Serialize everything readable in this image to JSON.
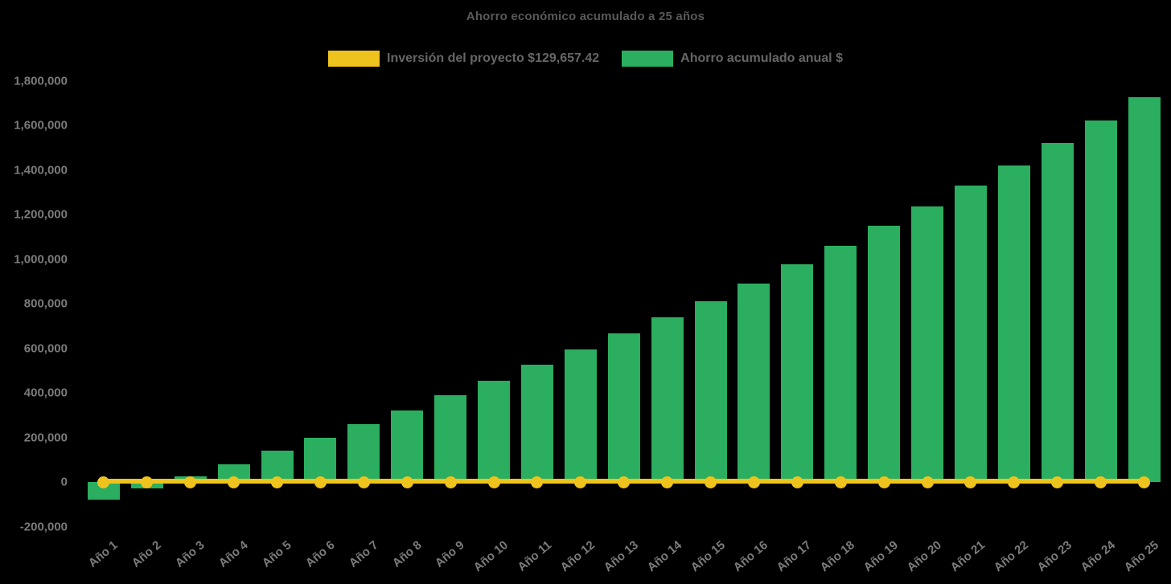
{
  "title": "Ahorro económico acumulado a 25 años",
  "legend": {
    "items": [
      {
        "label": "Inversión del proyecto $129,657.42",
        "color": "#efc31d"
      },
      {
        "label": "Ahorro acumulado anual $",
        "color": "#2bae5f"
      }
    ]
  },
  "colors": {
    "background": "#000000",
    "bars": "#2bae5f",
    "investment_line": "#efc31d",
    "title_text": "#595959",
    "legend_text": "#666666",
    "axis_text": "#7b7b7b"
  },
  "chart_data": {
    "type": "bar",
    "title": "Ahorro económico acumulado a 25 años",
    "xlabel": "",
    "ylabel": "",
    "legend_position": "top",
    "grid": false,
    "categories": [
      "Año 1",
      "Año 2",
      "Año 3",
      "Año 4",
      "Año 5",
      "Año 6",
      "Año 7",
      "Año 8",
      "Año 9",
      "Año 10",
      "Año 11",
      "Año 12",
      "Año 13",
      "Año 14",
      "Año 15",
      "Año 16",
      "Año 17",
      "Año 18",
      "Año 19",
      "Año 20",
      "Año 21",
      "Año 22",
      "Año 23",
      "Año 24",
      "Año 25"
    ],
    "series": [
      {
        "name": "Ahorro acumulado anual $",
        "type": "bar",
        "color": "#2bae5f",
        "values": [
          -80000,
          -30000,
          25000,
          80000,
          140000,
          200000,
          260000,
          320000,
          390000,
          455000,
          525000,
          595000,
          665000,
          740000,
          810000,
          890000,
          975000,
          1060000,
          1150000,
          1235000,
          1330000,
          1420000,
          1520000,
          1620000,
          1725000
        ]
      },
      {
        "name": "Inversión del proyecto $129,657.42",
        "type": "line",
        "color": "#efc31d",
        "investment_value_label": "$129,657.42",
        "investment_value": 129657.42,
        "plotted_at": 0,
        "values": [
          0,
          0,
          0,
          0,
          0,
          0,
          0,
          0,
          0,
          0,
          0,
          0,
          0,
          0,
          0,
          0,
          0,
          0,
          0,
          0,
          0,
          0,
          0,
          0,
          0
        ]
      }
    ],
    "y_axis": {
      "min": -200000,
      "max": 1800000,
      "step": 200000,
      "tick_labels": [
        "-200,000",
        "0",
        "200,000",
        "400,000",
        "600,000",
        "800,000",
        "1,000,000",
        "1,200,000",
        "1,400,000",
        "1,600,000",
        "1,800,000"
      ]
    },
    "ylim": [
      -200000,
      1800000
    ]
  }
}
